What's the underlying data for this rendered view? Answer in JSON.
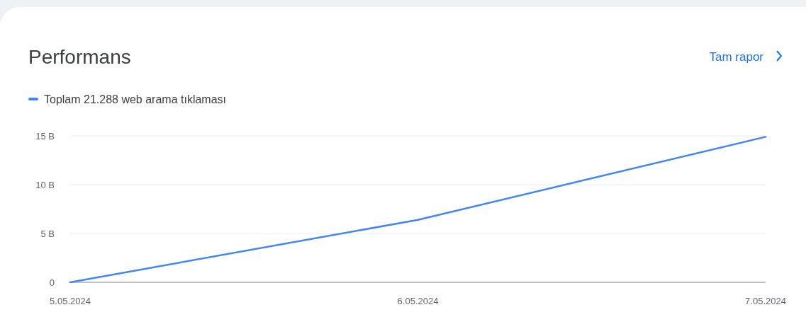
{
  "chart_data": {
    "type": "line",
    "title": "Performans",
    "annotations": [
      "Tam rapor"
    ],
    "x": [
      "2024-05-05",
      "2024-05-06",
      "2024-05-07"
    ],
    "xlim": [
      "2024-05-05",
      "2024-05-07"
    ],
    "xticks": [
      {
        "value": "2024-05-05",
        "label": "5.05.2024"
      },
      {
        "value": "2024-05-06",
        "label": "6.05.2024"
      },
      {
        "value": "2024-05-07",
        "label": "7.05.2024"
      }
    ],
    "ylim": [
      0,
      15
    ],
    "yticks": [
      0,
      {
        "value": 5,
        "label": "5 B"
      },
      {
        "value": 10,
        "label": "10 B"
      },
      {
        "value": 15,
        "label": "15 B"
      }
    ],
    "series": [
      {
        "name": "Toplam 21.288 web arama tıklaması",
        "color": "#4285f4",
        "values": [
          0,
          6.4,
          14.9
        ]
      }
    ],
    "grid": "y",
    "legend": "top left",
    "marker": "none",
    "line_style": "solid"
  }
}
